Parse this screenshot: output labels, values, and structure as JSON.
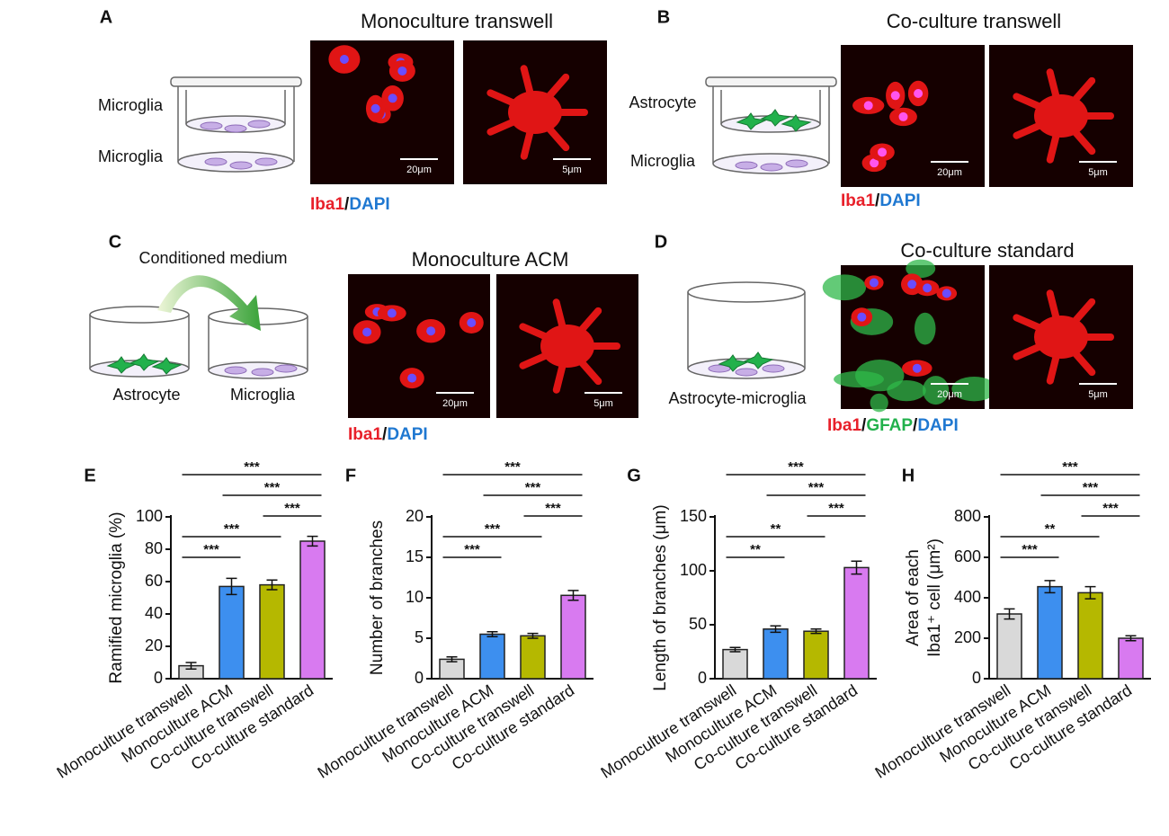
{
  "panels": [
    {
      "letter": "A",
      "title": "Monoculture transwell",
      "labels": [
        "Microglia",
        "Microglia"
      ],
      "scale_bars": [
        "20μm",
        "5μm"
      ],
      "stains": [
        {
          "text": "Iba1",
          "color": "#e8202a"
        },
        {
          "text": "DAPI",
          "color": "#1f78d1"
        }
      ],
      "separator": "/"
    },
    {
      "letter": "B",
      "title": "Co-culture transwell",
      "labels": [
        "Astrocyte",
        "Microglia"
      ],
      "scale_bars": [
        "20μm",
        "5μm"
      ],
      "stains": [
        {
          "text": "Iba1",
          "color": "#e8202a"
        },
        {
          "text": "DAPI",
          "color": "#1f78d1"
        }
      ],
      "separator": "/"
    },
    {
      "letter": "C",
      "title": "Monoculture ACM",
      "labels": [
        "Conditioned medium",
        "Astrocyte",
        "Microglia"
      ],
      "scale_bars": [
        "20μm",
        "5μm"
      ],
      "stains": [
        {
          "text": "Iba1",
          "color": "#e8202a"
        },
        {
          "text": "DAPI",
          "color": "#1f78d1"
        }
      ],
      "separator": "/"
    },
    {
      "letter": "D",
      "title": "Co-culture standard",
      "labels": [
        "Astrocyte-microglia"
      ],
      "scale_bars": [
        "20μm",
        "5μm"
      ],
      "stains": [
        {
          "text": "Iba1",
          "color": "#e8202a"
        },
        {
          "text": "GFAP",
          "color": "#22b14c"
        },
        {
          "text": "DAPI",
          "color": "#1f78d1"
        }
      ],
      "separator": "/"
    }
  ],
  "chart_data": [
    {
      "type": "bar",
      "panel": "E",
      "ylabel": [
        "Ramified microglia (%)"
      ],
      "categories": [
        "Monoculture transwell",
        "Monoculture ACM",
        "Co-culture transwell",
        "Co-culture standard"
      ],
      "values": [
        8,
        57,
        58,
        85
      ],
      "errors": [
        2,
        5,
        3,
        3
      ],
      "colors": [
        "#d9d9d9",
        "#3d8fef",
        "#b5b800",
        "#d87af0"
      ],
      "ylim": [
        0,
        100
      ],
      "yticks": [
        0,
        20,
        40,
        60,
        80,
        100
      ],
      "comparisons": [
        {
          "from": 0,
          "to": 1,
          "label": "***"
        },
        {
          "from": 0,
          "to": 2,
          "label": "***"
        },
        {
          "from": 2,
          "to": 3,
          "label": "***"
        },
        {
          "from": 1,
          "to": 3,
          "label": "***"
        },
        {
          "from": 0,
          "to": 3,
          "label": "***"
        }
      ]
    },
    {
      "type": "bar",
      "panel": "F",
      "ylabel": [
        "Number of branches"
      ],
      "categories": [
        "Monoculture transwell",
        "Monoculture ACM",
        "Co-culture transwell",
        "Co-culture standard"
      ],
      "values": [
        2.4,
        5.5,
        5.3,
        10.3
      ],
      "errors": [
        0.3,
        0.3,
        0.3,
        0.6
      ],
      "colors": [
        "#d9d9d9",
        "#3d8fef",
        "#b5b800",
        "#d87af0"
      ],
      "ylim": [
        0,
        20
      ],
      "yticks": [
        0,
        5,
        10,
        15,
        20
      ],
      "comparisons": [
        {
          "from": 0,
          "to": 1,
          "label": "***"
        },
        {
          "from": 0,
          "to": 2,
          "label": "***"
        },
        {
          "from": 2,
          "to": 3,
          "label": "***"
        },
        {
          "from": 1,
          "to": 3,
          "label": "***"
        },
        {
          "from": 0,
          "to": 3,
          "label": "***"
        }
      ]
    },
    {
      "type": "bar",
      "panel": "G",
      "ylabel": [
        "Length  of branches (μm)"
      ],
      "categories": [
        "Monoculture transwell",
        "Monoculture ACM",
        "Co-culture transwell",
        "Co-culture standard"
      ],
      "values": [
        27,
        46,
        44,
        103
      ],
      "errors": [
        2,
        3,
        2,
        6
      ],
      "colors": [
        "#d9d9d9",
        "#3d8fef",
        "#b5b800",
        "#d87af0"
      ],
      "ylim": [
        0,
        150
      ],
      "yticks": [
        0,
        50,
        100,
        150
      ],
      "comparisons": [
        {
          "from": 0,
          "to": 1,
          "label": "**"
        },
        {
          "from": 0,
          "to": 2,
          "label": "**"
        },
        {
          "from": 2,
          "to": 3,
          "label": "***"
        },
        {
          "from": 1,
          "to": 3,
          "label": "***"
        },
        {
          "from": 0,
          "to": 3,
          "label": "***"
        }
      ]
    },
    {
      "type": "bar",
      "panel": "H",
      "ylabel": [
        "Area of each",
        "Iba1⁺ cell (μm²)"
      ],
      "categories": [
        "Monoculture transwell",
        "Monoculture ACM",
        "Co-culture transwell",
        "Co-culture standard"
      ],
      "values": [
        320,
        455,
        425,
        200
      ],
      "errors": [
        25,
        30,
        30,
        12
      ],
      "colors": [
        "#d9d9d9",
        "#3d8fef",
        "#b5b800",
        "#d87af0"
      ],
      "ylim": [
        0,
        800
      ],
      "yticks": [
        0,
        200,
        400,
        600,
        800
      ],
      "comparisons": [
        {
          "from": 0,
          "to": 1,
          "label": "***"
        },
        {
          "from": 0,
          "to": 2,
          "label": "**"
        },
        {
          "from": 2,
          "to": 3,
          "label": "***"
        },
        {
          "from": 1,
          "to": 3,
          "label": "***"
        },
        {
          "from": 0,
          "to": 3,
          "label": "***"
        }
      ]
    }
  ]
}
